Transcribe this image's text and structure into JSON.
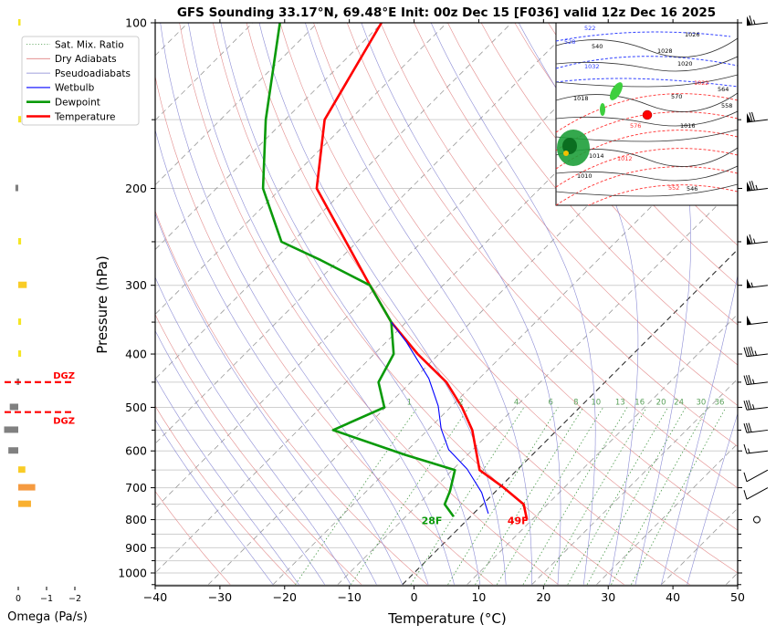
{
  "chart_data": {
    "type": "line",
    "subtype": "skew-t",
    "title": "GFS Sounding 33.17°N, 69.48°E Init: 00z Dec 15 [F036] valid 12z Dec 16 2025",
    "xlabel": "Temperature (°C)",
    "ylabel": "Pressure (hPa)",
    "xlim": [
      -40,
      50
    ],
    "ylim": [
      1050,
      100
    ],
    "x_ticks": [
      "−40",
      "−30",
      "−20",
      "−10",
      "0",
      "10",
      "20",
      "30",
      "40",
      "50"
    ],
    "x_tick_values": [
      -40,
      -30,
      -20,
      -10,
      0,
      10,
      20,
      30,
      40,
      50
    ],
    "y_ticks": [
      "100",
      "200",
      "300",
      "400",
      "500",
      "600",
      "700",
      "800",
      "900",
      "1000"
    ],
    "y_tick_values": [
      100,
      200,
      300,
      400,
      500,
      600,
      700,
      800,
      900,
      1000
    ],
    "y_minor_ticks": [
      150,
      250,
      350,
      450,
      550,
      650,
      750,
      850,
      950,
      1050
    ],
    "grid": true,
    "legend": {
      "position": "top-left",
      "entries": [
        {
          "label": "Sat. Mix. Ratio",
          "color": "#4a9a4a",
          "style": "dotted"
        },
        {
          "label": "Dry Adiabats",
          "color": "#e08080",
          "style": "solid"
        },
        {
          "label": "Pseudoadiabats",
          "color": "#8080d0",
          "style": "solid"
        },
        {
          "label": "Wetbulb",
          "color": "#0000ff",
          "style": "solid"
        },
        {
          "label": "Dewpoint",
          "color": "#0a9a0a",
          "style": "solid"
        },
        {
          "label": "Temperature",
          "color": "#ff0000",
          "style": "solid"
        }
      ]
    },
    "series": [
      {
        "name": "Temperature",
        "color": "#ff0000",
        "points": [
          {
            "p": 100,
            "t": -90.1
          },
          {
            "p": 150,
            "t": -83.9
          },
          {
            "p": 200,
            "t": -74.5
          },
          {
            "p": 300,
            "t": -51.3
          },
          {
            "p": 350,
            "t": -42.3
          },
          {
            "p": 400,
            "t": -33.3
          },
          {
            "p": 450,
            "t": -24.5
          },
          {
            "p": 500,
            "t": -18.2
          },
          {
            "p": 550,
            "t": -13.1
          },
          {
            "p": 650,
            "t": -5.8
          },
          {
            "p": 700,
            "t": 0.7
          },
          {
            "p": 750,
            "t": 6.3
          },
          {
            "p": 800,
            "t": 9.2
          }
        ]
      },
      {
        "name": "Dewpoint",
        "color": "#0a9a0a",
        "points": [
          {
            "p": 100,
            "t": -105.8
          },
          {
            "p": 150,
            "t": -93.0
          },
          {
            "p": 200,
            "t": -82.8
          },
          {
            "p": 250,
            "t": -71.7
          },
          {
            "p": 270,
            "t": -62.8
          },
          {
            "p": 300,
            "t": -51.3
          },
          {
            "p": 350,
            "t": -42.3
          },
          {
            "p": 400,
            "t": -37.0
          },
          {
            "p": 450,
            "t": -35.0
          },
          {
            "p": 500,
            "t": -30.2
          },
          {
            "p": 550,
            "t": -34.6
          },
          {
            "p": 610,
            "t": -19.6
          },
          {
            "p": 650,
            "t": -9.6
          },
          {
            "p": 710,
            "t": -7.1
          },
          {
            "p": 750,
            "t": -5.9
          },
          {
            "p": 790,
            "t": -2.6
          }
        ]
      },
      {
        "name": "Wetbulb",
        "color": "#0000ff",
        "points": [
          {
            "p": 350,
            "t": -42.3
          },
          {
            "p": 381,
            "t": -36.8
          },
          {
            "p": 443,
            "t": -27.8
          },
          {
            "p": 497,
            "t": -22.1
          },
          {
            "p": 547,
            "t": -18.1
          },
          {
            "p": 597,
            "t": -13.7
          },
          {
            "p": 647,
            "t": -7.9
          },
          {
            "p": 714,
            "t": -2.0
          },
          {
            "p": 780,
            "t": 2.3
          }
        ]
      }
    ],
    "surface_labels": [
      {
        "text": "28F",
        "color": "#0a9a0a",
        "p": 800,
        "t": -5.5
      },
      {
        "text": "49F",
        "color": "#ff0000",
        "p": 800,
        "t": 7.8
      }
    ],
    "mixing_ratio_labels": [
      "1",
      "2",
      "4",
      "6",
      "8",
      "10",
      "13",
      "16",
      "20",
      "24",
      "30",
      "36"
    ],
    "mixing_ratio_values": [
      1,
      2,
      4,
      6,
      8,
      10,
      13,
      16,
      20,
      24,
      30,
      36
    ],
    "mixing_ratio_label_pressure": 500,
    "wind_barbs": [
      {
        "p": 100,
        "speed_kt": 65
      },
      {
        "p": 150,
        "speed_kt": 70
      },
      {
        "p": 200,
        "speed_kt": 75
      },
      {
        "p": 250,
        "speed_kt": 65
      },
      {
        "p": 300,
        "speed_kt": 55
      },
      {
        "p": 350,
        "speed_kt": 50
      },
      {
        "p": 400,
        "speed_kt": 45
      },
      {
        "p": 450,
        "speed_kt": 35
      },
      {
        "p": 500,
        "speed_kt": 35
      },
      {
        "p": 550,
        "speed_kt": 30
      },
      {
        "p": 600,
        "speed_kt": 15
      },
      {
        "p": 650,
        "speed_kt": 10
      },
      {
        "p": 700,
        "speed_kt": 10
      },
      {
        "p": 800,
        "speed_kt": 0
      }
    ],
    "omega_panel": {
      "xlabel": "Omega (Pa/s)",
      "x_ticks": [
        "0",
        "−1",
        "−2"
      ],
      "x_tick_values": [
        0,
        -1,
        -2
      ],
      "dgz_label": "DGZ",
      "dgz_pressures": [
        450,
        510
      ],
      "bars": [
        {
          "p": 100,
          "omega": -0.05,
          "color": "#f5e625"
        },
        {
          "p": 150,
          "omega": -0.1,
          "color": "#f5e625"
        },
        {
          "p": 200,
          "omega": 0.1,
          "color": "#808080"
        },
        {
          "p": 250,
          "omega": -0.1,
          "color": "#f5e625"
        },
        {
          "p": 300,
          "omega": -0.3,
          "color": "#f9cc26"
        },
        {
          "p": 350,
          "omega": -0.1,
          "color": "#f5e625"
        },
        {
          "p": 400,
          "omega": -0.1,
          "color": "#f5e625"
        },
        {
          "p": 450,
          "omega": 0.05,
          "color": "#808080"
        },
        {
          "p": 500,
          "omega": 0.3,
          "color": "#808080"
        },
        {
          "p": 550,
          "omega": 0.5,
          "color": "#808080"
        },
        {
          "p": 600,
          "omega": 0.35,
          "color": "#808080"
        },
        {
          "p": 650,
          "omega": -0.25,
          "color": "#f9cc26"
        },
        {
          "p": 700,
          "omega": -0.6,
          "color": "#f59a40"
        },
        {
          "p": 750,
          "omega": -0.45,
          "color": "#f9b030"
        }
      ]
    },
    "inset_map": {
      "contour_labels": [
        "522",
        "528",
        "540",
        "1026",
        "1028",
        "1032",
        "1022",
        "1020",
        "1018",
        "1014",
        "1012",
        "1010",
        "546",
        "552",
        "558",
        "564",
        "570",
        "576",
        "1016"
      ],
      "station_marker_color": "#ff0000"
    }
  }
}
